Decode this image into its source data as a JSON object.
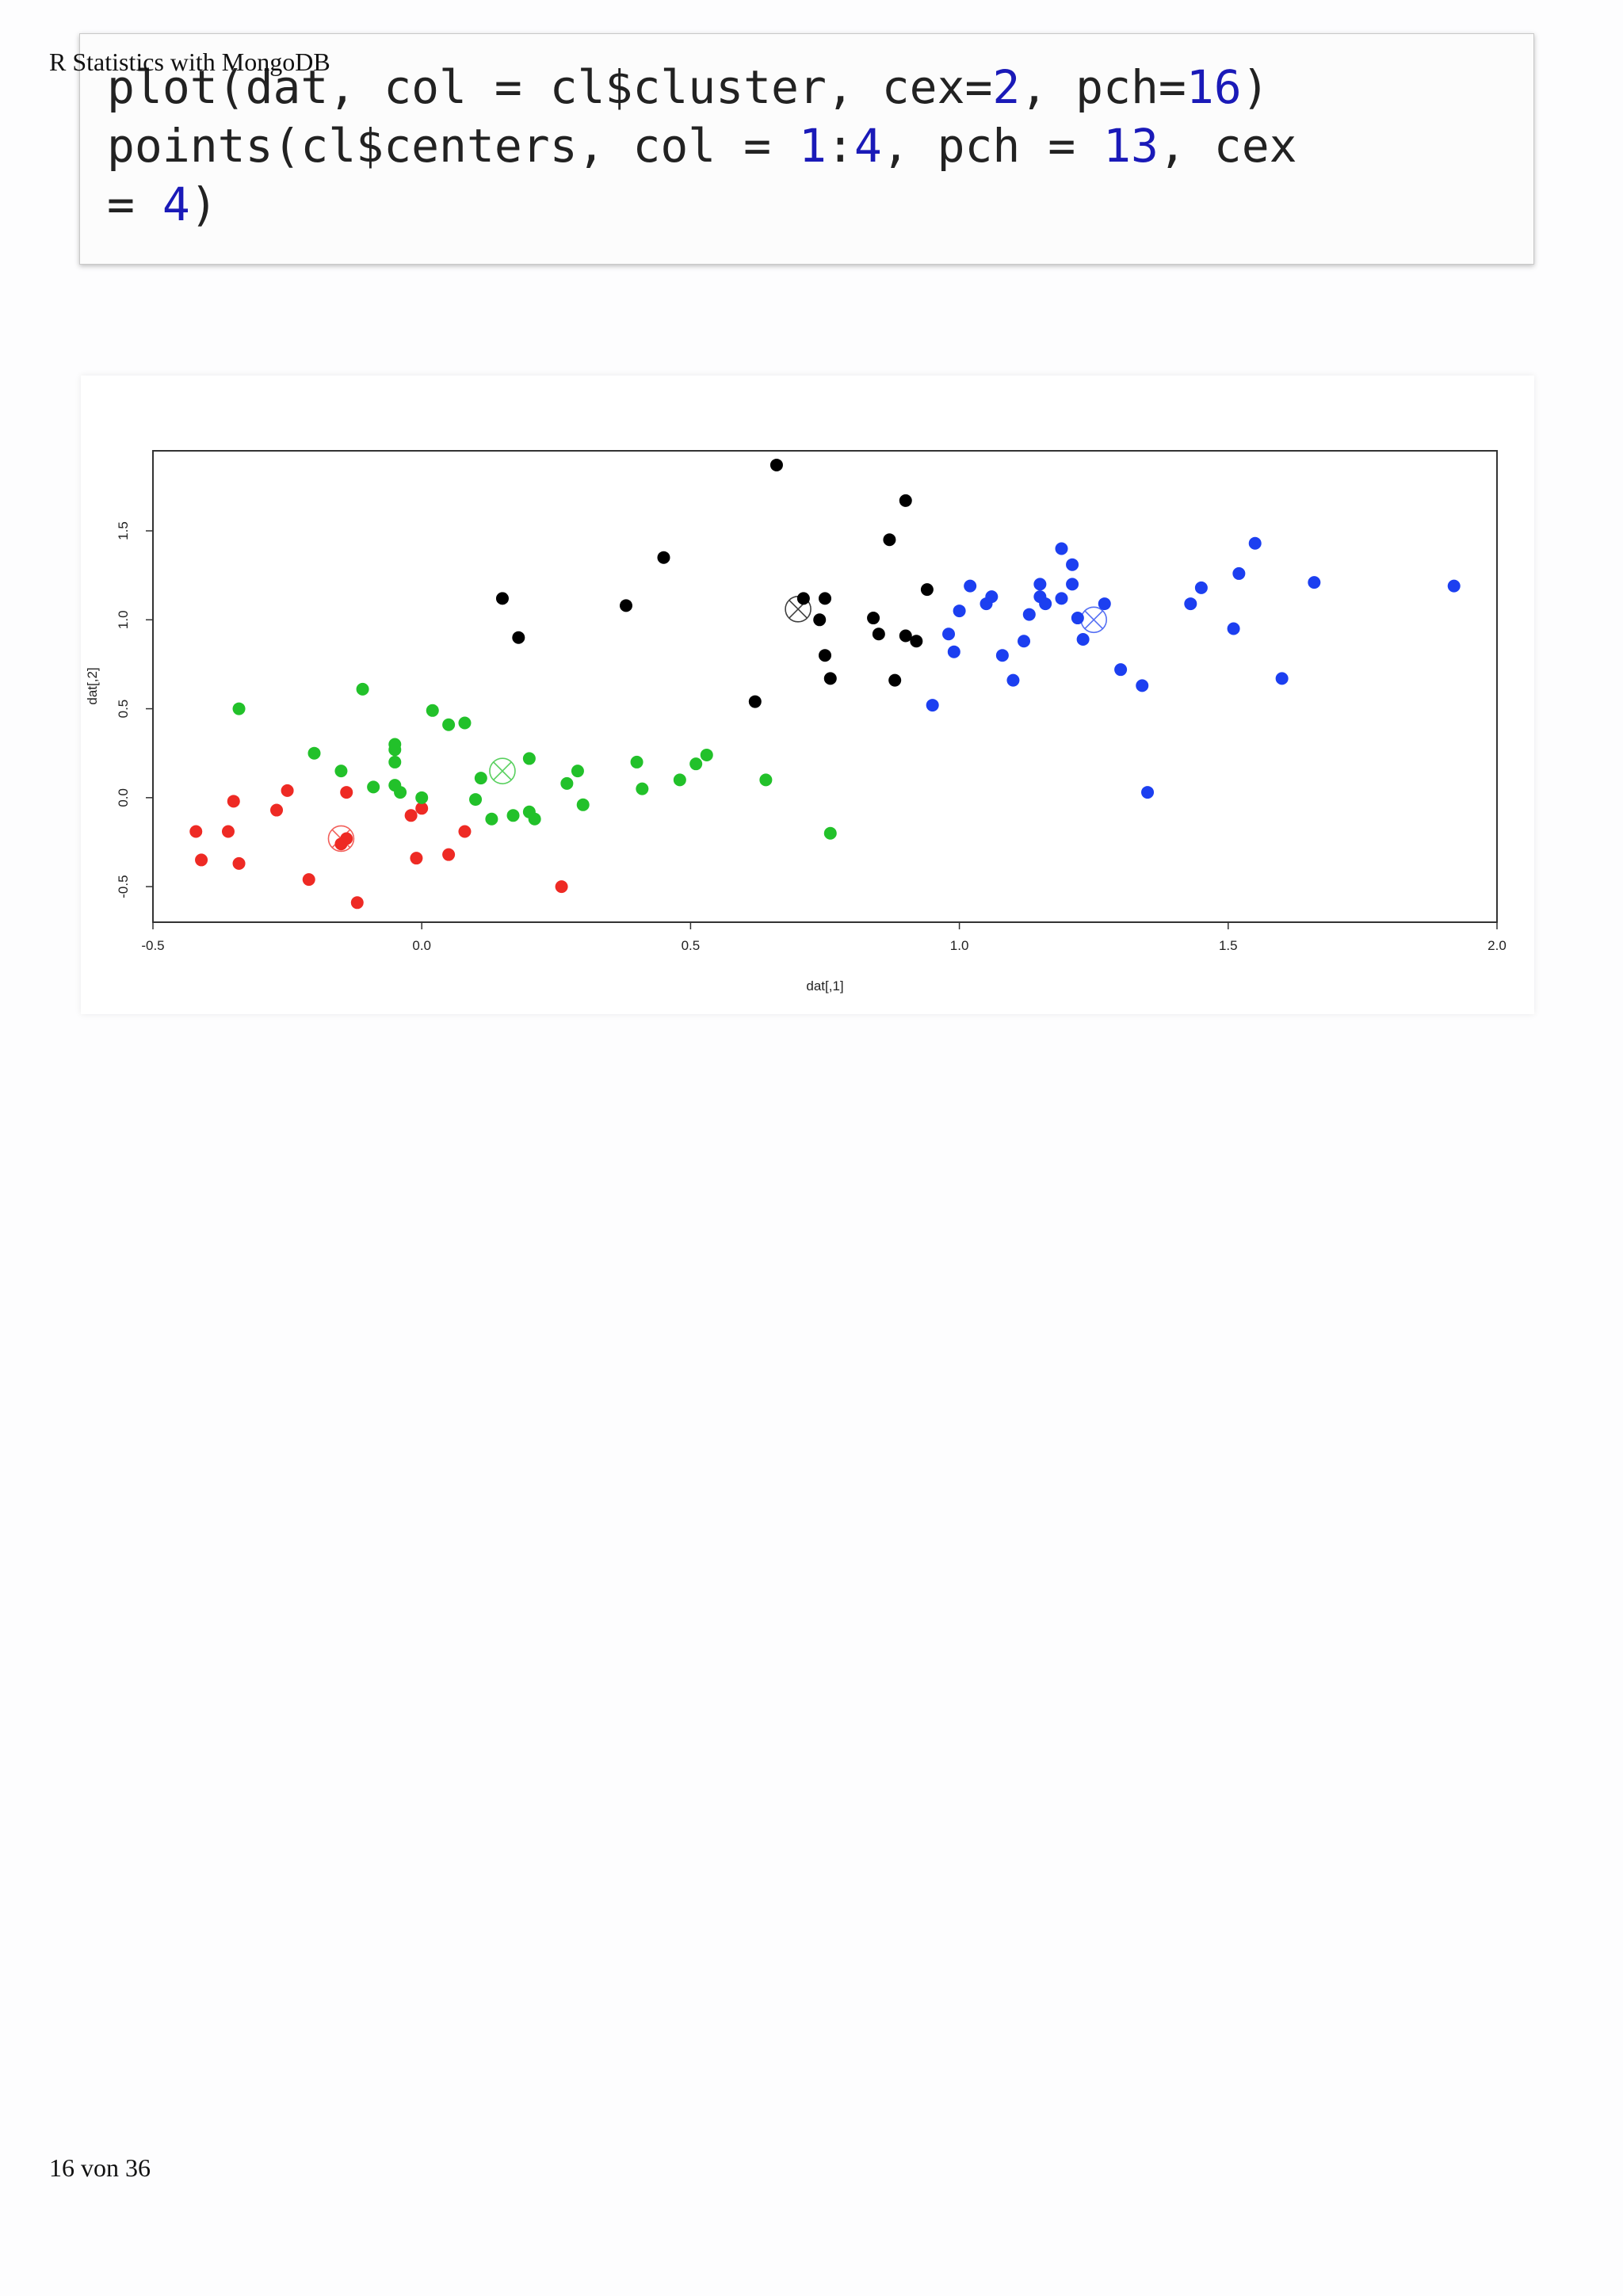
{
  "page": {
    "header": "R Statistics with MongoDB",
    "footer": "16 von 36"
  },
  "code": {
    "line1": [
      {
        "t": "plot(dat, col = cl$cluster, cex=",
        "c": "txt"
      },
      {
        "t": "2",
        "c": "num"
      },
      {
        "t": ", pch=",
        "c": "txt"
      },
      {
        "t": "16",
        "c": "num"
      },
      {
        "t": ")",
        "c": "txt"
      }
    ],
    "line2": [
      {
        "t": "points(cl$centers, col = ",
        "c": "txt"
      },
      {
        "t": "1",
        "c": "num"
      },
      {
        "t": ":",
        "c": "txt"
      },
      {
        "t": "4",
        "c": "num"
      },
      {
        "t": ", pch = ",
        "c": "txt"
      },
      {
        "t": "13",
        "c": "num"
      },
      {
        "t": ", cex",
        "c": "txt"
      }
    ],
    "line3": [
      {
        "t": "= ",
        "c": "txt"
      },
      {
        "t": "4",
        "c": "num"
      },
      {
        "t": ")",
        "c": "txt"
      }
    ]
  },
  "chart_data": {
    "type": "scatter",
    "xlabel": "dat[,1]",
    "ylabel": "dat[,2]",
    "xlim": [
      -0.5,
      2.0
    ],
    "ylim": [
      -0.7,
      1.95
    ],
    "x_ticks": [
      "-0.5",
      "0.0",
      "0.5",
      "1.0",
      "1.5",
      "2.0"
    ],
    "y_ticks": [
      "-0.5",
      "0.0",
      "0.5",
      "1.0",
      "1.5"
    ],
    "grid": false,
    "colors": {
      "1": "#000000",
      "2": "#ee2a24",
      "3": "#22c12a",
      "4": "#1c3ff0"
    },
    "series": [
      {
        "cluster": 1,
        "color": "#000000",
        "points": [
          [
            0.15,
            1.12
          ],
          [
            0.18,
            0.9
          ],
          [
            0.38,
            1.08
          ],
          [
            0.45,
            1.35
          ],
          [
            0.66,
            1.87
          ],
          [
            0.62,
            0.54
          ],
          [
            0.71,
            1.12
          ],
          [
            0.74,
            1.0
          ],
          [
            0.75,
            1.12
          ],
          [
            0.75,
            0.8
          ],
          [
            0.76,
            0.67
          ],
          [
            0.84,
            1.01
          ],
          [
            0.85,
            0.92
          ],
          [
            0.87,
            1.45
          ],
          [
            0.88,
            0.66
          ],
          [
            0.9,
            1.67
          ],
          [
            0.9,
            0.91
          ],
          [
            0.92,
            0.88
          ],
          [
            0.94,
            1.17
          ]
        ]
      },
      {
        "cluster": 2,
        "color": "#ee2a24",
        "points": [
          [
            -0.42,
            -0.19
          ],
          [
            -0.41,
            -0.35
          ],
          [
            -0.36,
            -0.19
          ],
          [
            -0.35,
            -0.02
          ],
          [
            -0.34,
            -0.37
          ],
          [
            -0.27,
            -0.07
          ],
          [
            -0.25,
            0.04
          ],
          [
            -0.21,
            -0.46
          ],
          [
            -0.14,
            0.03
          ],
          [
            -0.14,
            -0.23
          ],
          [
            -0.15,
            -0.26
          ],
          [
            -0.12,
            -0.59
          ],
          [
            -0.02,
            -0.1
          ],
          [
            -0.01,
            -0.34
          ],
          [
            0.0,
            -0.06
          ],
          [
            0.05,
            -0.32
          ],
          [
            0.08,
            -0.19
          ],
          [
            0.26,
            -0.5
          ]
        ]
      },
      {
        "cluster": 3,
        "color": "#22c12a",
        "points": [
          [
            -0.34,
            0.5
          ],
          [
            -0.2,
            0.25
          ],
          [
            -0.15,
            0.15
          ],
          [
            -0.11,
            0.61
          ],
          [
            -0.09,
            0.06
          ],
          [
            -0.05,
            0.27
          ],
          [
            -0.05,
            0.3
          ],
          [
            -0.05,
            0.2
          ],
          [
            -0.05,
            0.07
          ],
          [
            -0.04,
            0.03
          ],
          [
            0.0,
            0.0
          ],
          [
            0.02,
            0.49
          ],
          [
            0.05,
            0.41
          ],
          [
            0.08,
            0.42
          ],
          [
            0.1,
            -0.01
          ],
          [
            0.11,
            0.11
          ],
          [
            0.13,
            -0.12
          ],
          [
            0.17,
            -0.1
          ],
          [
            0.2,
            0.22
          ],
          [
            0.2,
            -0.08
          ],
          [
            0.21,
            -0.12
          ],
          [
            0.27,
            0.08
          ],
          [
            0.29,
            0.15
          ],
          [
            0.3,
            -0.04
          ],
          [
            0.4,
            0.2
          ],
          [
            0.41,
            0.05
          ],
          [
            0.48,
            0.1
          ],
          [
            0.51,
            0.19
          ],
          [
            0.53,
            0.24
          ],
          [
            0.64,
            0.1
          ],
          [
            0.76,
            -0.2
          ]
        ]
      },
      {
        "cluster": 4,
        "color": "#1c3ff0",
        "points": [
          [
            0.95,
            0.52
          ],
          [
            0.98,
            0.92
          ],
          [
            0.99,
            0.82
          ],
          [
            1.0,
            1.05
          ],
          [
            1.02,
            1.19
          ],
          [
            1.05,
            1.09
          ],
          [
            1.06,
            1.13
          ],
          [
            1.08,
            0.8
          ],
          [
            1.1,
            0.66
          ],
          [
            1.12,
            0.88
          ],
          [
            1.13,
            1.03
          ],
          [
            1.15,
            1.2
          ],
          [
            1.15,
            1.13
          ],
          [
            1.16,
            1.09
          ],
          [
            1.19,
            1.4
          ],
          [
            1.19,
            1.12
          ],
          [
            1.21,
            1.31
          ],
          [
            1.21,
            1.2
          ],
          [
            1.22,
            1.01
          ],
          [
            1.23,
            0.89
          ],
          [
            1.27,
            1.09
          ],
          [
            1.3,
            0.72
          ],
          [
            1.34,
            0.63
          ],
          [
            1.35,
            0.03
          ],
          [
            1.43,
            1.09
          ],
          [
            1.45,
            1.18
          ],
          [
            1.51,
            0.95
          ],
          [
            1.52,
            1.26
          ],
          [
            1.55,
            1.43
          ],
          [
            1.6,
            0.67
          ],
          [
            1.66,
            1.21
          ],
          [
            1.92,
            1.19
          ]
        ]
      }
    ],
    "centers": [
      {
        "cluster": 1,
        "x": 0.7,
        "y": 1.06
      },
      {
        "cluster": 2,
        "x": -0.15,
        "y": -0.23
      },
      {
        "cluster": 3,
        "x": 0.15,
        "y": 0.15
      },
      {
        "cluster": 4,
        "x": 1.25,
        "y": 1.0
      }
    ]
  }
}
